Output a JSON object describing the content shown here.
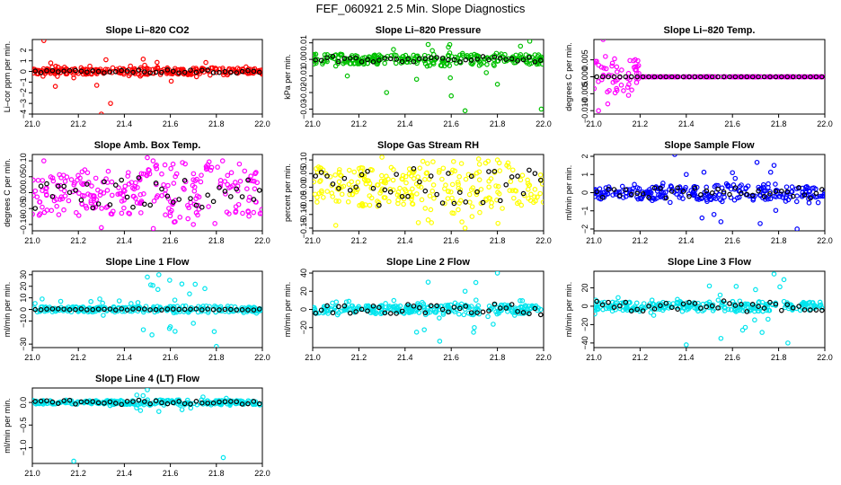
{
  "figure": {
    "title": "FEF_060921  2.5 Min. Slope Diagnostics"
  },
  "chart_data": [
    {
      "type": "scatter",
      "title": "Slope Li–820 CO2",
      "ylabel": "Li–cor ppm per min.",
      "xlim": [
        21.0,
        22.0
      ],
      "ylim": [
        -4,
        3
      ],
      "xticks": [
        "21.0",
        "21.2",
        "21.4",
        "21.6",
        "21.8",
        "22.0"
      ],
      "yticks": [
        -4,
        -3,
        -2,
        -1,
        0,
        1,
        2
      ],
      "ytick_labels": [
        "−4",
        "−3",
        "−2",
        "−1",
        "0",
        "1",
        "2"
      ],
      "color": "#ff0000",
      "spread": 0.35,
      "outlier_spread": 1.5,
      "reference_spread": 0.15,
      "series": [
        {
          "x": [
            21.02,
            21.05,
            21.08,
            21.1,
            21.14,
            21.18,
            21.22,
            21.25,
            21.28,
            21.3,
            21.32,
            21.34,
            21.38,
            21.42,
            21.5,
            21.6,
            21.7,
            21.8,
            21.9,
            21.98
          ],
          "y": [
            0.1,
            2.9,
            0.8,
            -1.4,
            0.4,
            -0.6,
            0.2,
            0.5,
            -1.3,
            -4.0,
            1.1,
            -3.0,
            0.3,
            -0.4,
            0.2,
            -0.2,
            0.3,
            -0.1,
            0.2,
            0.0
          ]
        }
      ]
    },
    {
      "type": "scatter",
      "title": "Slope Li–820 Pressure",
      "ylabel": "kPa per min.",
      "xlim": [
        21.0,
        22.0
      ],
      "ylim": [
        -0.033,
        0.012
      ],
      "xticks": [
        "21.0",
        "21.2",
        "21.4",
        "21.6",
        "21.8",
        "22.0"
      ],
      "yticks": [
        -0.03,
        -0.02,
        -0.01,
        0.0,
        0.01
      ],
      "ytick_labels": [
        "−0.03",
        "−0.02",
        "−0.01",
        "0.00",
        "0.01"
      ],
      "color": "#00c000",
      "spread": 0.004,
      "outlier_spread": 0.012,
      "reference_spread": 0.002,
      "series": [
        {
          "x": [
            21.02,
            21.1,
            21.15,
            21.2,
            21.32,
            21.35,
            21.45,
            21.5,
            21.6,
            21.66,
            21.7,
            21.8,
            21.9,
            21.94,
            21.99
          ],
          "y": [
            0.0,
            -0.004,
            -0.01,
            -0.002,
            -0.02,
            0.006,
            -0.012,
            0.009,
            -0.022,
            -0.031,
            0.003,
            -0.015,
            0.008,
            0.011,
            -0.03
          ]
        }
      ]
    },
    {
      "type": "scatter",
      "title": "Slope Li–820 Temp.",
      "ylabel": "degrees C per min.",
      "xlim": [
        21.0,
        22.0
      ],
      "ylim": [
        -0.011,
        0.011
      ],
      "xticks": [
        "21.0",
        "21.2",
        "21.4",
        "21.6",
        "21.8",
        "22.0"
      ],
      "yticks": [
        -0.01,
        -0.005,
        0.0,
        0.005
      ],
      "ytick_labels": [
        "−0.010",
        "−0.005",
        "0.000",
        "0.005"
      ],
      "color": "#ff00ff",
      "spread": 0.0,
      "outlier_spread": 0.008,
      "reference_spread": 0.0,
      "series": [
        {
          "x": [
            21.02,
            21.04,
            21.05,
            21.06,
            21.08,
            21.1,
            21.12,
            21.15
          ],
          "y": [
            -0.01,
            0.011,
            0.006,
            -0.008,
            0.004,
            -0.004,
            0.002,
            0.001
          ]
        }
      ]
    },
    {
      "type": "scatter",
      "title": "Slope Amb. Box Temp.",
      "ylabel": "degrees C per min.",
      "xlim": [
        21.0,
        22.0
      ],
      "ylim": [
        -0.12,
        0.12
      ],
      "xticks": [
        "21.0",
        "21.2",
        "21.4",
        "21.6",
        "21.8",
        "22.0"
      ],
      "yticks": [
        -0.1,
        -0.05,
        0.0,
        0.05,
        0.1
      ],
      "ytick_labels": [
        "−0.10",
        "−0.05",
        "0.00",
        "0.05",
        "0.10"
      ],
      "color": "#ff00ff",
      "spread": 0.1,
      "outlier_spread": 0.12,
      "reference_spread": 0.05,
      "series": [
        {
          "x": [
            21.05,
            21.3,
            21.5,
            21.7,
            21.9
          ],
          "y": [
            0.1,
            -0.11,
            0.11,
            -0.1,
            0.09
          ]
        }
      ]
    },
    {
      "type": "scatter",
      "title": "Slope Gas Stream RH",
      "ylabel": "percent per min.",
      "xlim": [
        21.0,
        22.0
      ],
      "ylim": [
        -0.16,
        0.12
      ],
      "xticks": [
        "21.0",
        "21.2",
        "21.4",
        "21.6",
        "21.8",
        "22.0"
      ],
      "yticks": [
        -0.15,
        -0.1,
        -0.05,
        0.0,
        0.05,
        0.1
      ],
      "ytick_labels": [
        "−0.15",
        "−0.10",
        "−0.05",
        "0.00",
        "0.05",
        "0.10"
      ],
      "color": "#ffff00",
      "spread": 0.1,
      "outlier_spread": 0.14,
      "reference_spread": 0.07,
      "series": [
        {
          "x": [
            21.1,
            21.3,
            21.5,
            21.66,
            21.8
          ],
          "y": [
            -0.14,
            0.11,
            -0.12,
            -0.15,
            0.1
          ]
        }
      ]
    },
    {
      "type": "scatter",
      "title": "Slope Sample Flow",
      "ylabel": "ml/min per min.",
      "xlim": [
        21.0,
        22.0
      ],
      "ylim": [
        -2.1,
        2.1
      ],
      "xticks": [
        "21.0",
        "21.2",
        "21.4",
        "21.6",
        "21.8",
        "22.0"
      ],
      "yticks": [
        -2,
        -1,
        0,
        1,
        2
      ],
      "ytick_labels": [
        "−2",
        "−1",
        "0",
        "1",
        "2"
      ],
      "color": "#0000ff",
      "spread": 0.5,
      "outlier_spread": 1.7,
      "reference_spread": 0.3,
      "series": [
        {
          "x": [
            21.35,
            21.4,
            21.52,
            21.55,
            21.6,
            21.72,
            21.78,
            21.88
          ],
          "y": [
            2.1,
            1.0,
            -1.2,
            -1.6,
            1.1,
            -1.7,
            1.5,
            -2.0
          ]
        }
      ]
    },
    {
      "type": "scatter",
      "title": "Slope Line 1 Flow",
      "ylabel": "ml/min per min.",
      "xlim": [
        21.0,
        22.0
      ],
      "ylim": [
        -33,
        33
      ],
      "xticks": [
        "21.0",
        "21.2",
        "21.4",
        "21.6",
        "21.8",
        "22.0"
      ],
      "yticks": [
        -30,
        -10,
        0,
        10,
        20,
        30
      ],
      "ytick_labels": [
        "−30",
        "−10",
        "0",
        "10",
        "20",
        "30"
      ],
      "color": "#00e5ee",
      "spread": 3,
      "outlier_spread": 28,
      "reference_spread": 0.5,
      "series": [
        {
          "x": [
            21.5,
            21.52,
            21.55,
            21.6,
            21.65,
            21.7,
            21.75,
            21.8
          ],
          "y": [
            28,
            -22,
            30,
            -15,
            22,
            -12,
            18,
            -32
          ]
        }
      ]
    },
    {
      "type": "scatter",
      "title": "Slope Line 2 Flow",
      "ylabel": "ml/min per min.",
      "xlim": [
        21.0,
        22.0
      ],
      "ylim": [
        -42,
        42
      ],
      "xticks": [
        "21.0",
        "21.2",
        "21.4",
        "21.6",
        "21.8",
        "22.0"
      ],
      "yticks": [
        -20,
        0,
        20,
        40
      ],
      "ytick_labels": [
        "−20",
        "0",
        "20",
        "40"
      ],
      "color": "#00e5ee",
      "spread": 6,
      "outlier_spread": 30,
      "reference_spread": 6,
      "series": [
        {
          "x": [
            21.45,
            21.5,
            21.55,
            21.66,
            21.7,
            21.8
          ],
          "y": [
            -25,
            30,
            -35,
            20,
            -20,
            40
          ]
        }
      ]
    },
    {
      "type": "scatter",
      "title": "Slope Line 3 Flow",
      "ylabel": "ml/min per min.",
      "xlim": [
        21.0,
        22.0
      ],
      "ylim": [
        -45,
        38
      ],
      "xticks": [
        "21.0",
        "21.2",
        "21.4",
        "21.6",
        "21.8",
        "22.0"
      ],
      "yticks": [
        -40,
        -20,
        0,
        20
      ],
      "ytick_labels": [
        "−40",
        "−20",
        "0",
        "20"
      ],
      "color": "#00e5ee",
      "spread": 6,
      "outlier_spread": 30,
      "reference_spread": 6,
      "series": [
        {
          "x": [
            21.4,
            21.5,
            21.55,
            21.7,
            21.78,
            21.84
          ],
          "y": [
            -42,
            22,
            -35,
            18,
            35,
            -40
          ]
        }
      ]
    },
    {
      "type": "scatter",
      "title": "Slope Line 4 (LT) Flow",
      "ylabel": "ml/min per min.",
      "xlim": [
        21.0,
        22.0
      ],
      "ylim": [
        -1.35,
        0.32
      ],
      "xticks": [
        "21.0",
        "21.2",
        "21.4",
        "21.6",
        "21.8",
        "22.0"
      ],
      "yticks": [
        -1.0,
        -0.5,
        0.0
      ],
      "ytick_labels": [
        "−1.0",
        "−0.5",
        "0.0"
      ],
      "color": "#00e5ee",
      "spread": 0.06,
      "outlier_spread": 0.2,
      "reference_spread": 0.05,
      "series": [
        {
          "x": [
            21.18,
            21.83,
            21.5,
            21.55
          ],
          "y": [
            -1.3,
            -1.22,
            0.28,
            -0.2
          ]
        }
      ]
    }
  ]
}
